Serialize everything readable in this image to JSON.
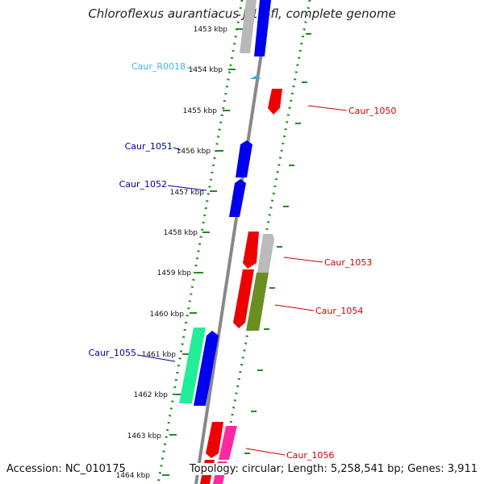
{
  "title": "Chloroflexus aurantiacus J-10-fl, complete genome",
  "accession": "Accession: NC_010175",
  "summary": "Topology: circular; Length: 5,258,541 bp; Genes: 3,911",
  "ticks": [
    "1453 kbp",
    "1454 kbp",
    "1455 kbp",
    "1456 kbp",
    "1457 kbp",
    "1458 kbp",
    "1459 kbp",
    "1460 kbp",
    "1461 kbp",
    "1462 kbp",
    "1463 kbp",
    "1464 kbp"
  ],
  "colors": {
    "blue": "#0000ee",
    "red": "#ee0000",
    "grey": "#b8b8b8",
    "olive": "#6b8e23",
    "teal": "#22ee99",
    "pink": "#ff2aa0",
    "cyan": "#33aadd",
    "dotted": "#228b22",
    "backbone": "#888888"
  },
  "labels": [
    {
      "text": "Caur_R0018",
      "color": "#33bbee"
    },
    {
      "text": "Caur_1050",
      "color": "#cc0000"
    },
    {
      "text": "Caur_1051",
      "color": "#000099"
    },
    {
      "text": "Caur_1052",
      "color": "#000099"
    },
    {
      "text": "Caur_1053",
      "color": "#cc0000"
    },
    {
      "text": "Caur_1054",
      "color": "#cc0000"
    },
    {
      "text": "Caur_1055",
      "color": "#000099"
    },
    {
      "text": "Caur_1056",
      "color": "#cc0000"
    }
  ]
}
